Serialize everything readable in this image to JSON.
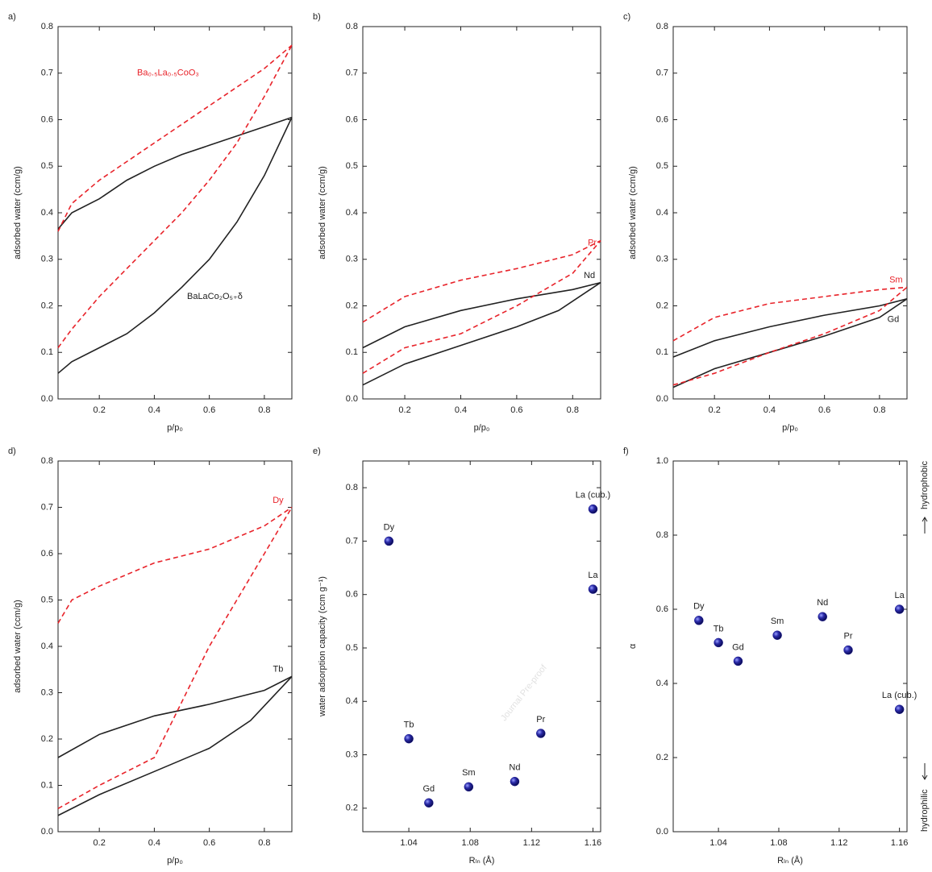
{
  "watermark": "Journal Pre-proof",
  "chart_data": [
    {
      "type": "line",
      "panel_label": "a)",
      "xlabel": "p/p₀",
      "ylabel": "adsorbed water (ccm/g)",
      "xlim": [
        0.05,
        0.9
      ],
      "ylim": [
        0,
        0.8
      ],
      "xticks": [
        0.2,
        0.4,
        0.6,
        0.8
      ],
      "yticks": [
        {
          "value": 0,
          "label": "0.0"
        },
        0.1,
        0.2,
        0.3,
        0.4,
        0.5,
        0.6,
        0.7,
        0.8
      ],
      "annotations": [
        {
          "text": "Ba₀.₅La₀.₅CoO₃",
          "color": "#e8232a"
        },
        {
          "text": "BaLaCo₂O₅₊δ",
          "color": "#222222"
        }
      ],
      "series": [
        {
          "color": "#222222",
          "dashed": false,
          "x": [
            0.05,
            0.1,
            0.2,
            0.3,
            0.4,
            0.5,
            0.6,
            0.7,
            0.8,
            0.9
          ],
          "values": [
            0.365,
            0.4,
            0.43,
            0.47,
            0.5,
            0.525,
            0.545,
            0.565,
            0.585,
            0.605
          ]
        },
        {
          "color": "#222222",
          "dashed": false,
          "x": [
            0.05,
            0.1,
            0.2,
            0.3,
            0.4,
            0.5,
            0.6,
            0.7,
            0.8,
            0.9
          ],
          "values": [
            0.055,
            0.08,
            0.11,
            0.14,
            0.185,
            0.24,
            0.3,
            0.38,
            0.48,
            0.605
          ]
        },
        {
          "color": "#e8232a",
          "dashed": true,
          "x": [
            0.05,
            0.1,
            0.2,
            0.3,
            0.4,
            0.5,
            0.6,
            0.7,
            0.8,
            0.9
          ],
          "values": [
            0.36,
            0.42,
            0.47,
            0.51,
            0.55,
            0.59,
            0.63,
            0.67,
            0.71,
            0.76
          ]
        },
        {
          "color": "#e8232a",
          "dashed": true,
          "x": [
            0.05,
            0.1,
            0.2,
            0.3,
            0.4,
            0.5,
            0.6,
            0.7,
            0.8,
            0.9
          ],
          "values": [
            0.11,
            0.15,
            0.22,
            0.28,
            0.34,
            0.4,
            0.47,
            0.55,
            0.65,
            0.76
          ]
        }
      ]
    },
    {
      "type": "line",
      "panel_label": "b)",
      "xlabel": "p/p₀",
      "ylabel": "adsorbed water (ccm/g)",
      "xlim": [
        0.05,
        0.9
      ],
      "ylim": [
        0,
        0.8
      ],
      "xticks": [
        0.2,
        0.4,
        0.6,
        0.8
      ],
      "yticks": [
        {
          "value": 0,
          "label": "0.0"
        },
        0.1,
        0.2,
        0.3,
        0.4,
        0.5,
        0.6,
        0.7,
        0.8
      ],
      "annotations": [
        {
          "text": "Pr",
          "color": "#e8232a"
        },
        {
          "text": "Nd",
          "color": "#222222"
        }
      ],
      "series": [
        {
          "color": "#222222",
          "dashed": false,
          "x": [
            0.05,
            0.2,
            0.4,
            0.6,
            0.8,
            0.9
          ],
          "values": [
            0.11,
            0.155,
            0.19,
            0.215,
            0.235,
            0.25
          ]
        },
        {
          "color": "#222222",
          "dashed": false,
          "x": [
            0.05,
            0.2,
            0.4,
            0.6,
            0.75,
            0.9
          ],
          "values": [
            0.03,
            0.075,
            0.115,
            0.155,
            0.19,
            0.25
          ]
        },
        {
          "color": "#e8232a",
          "dashed": true,
          "x": [
            0.05,
            0.2,
            0.4,
            0.6,
            0.8,
            0.9
          ],
          "values": [
            0.165,
            0.22,
            0.255,
            0.28,
            0.31,
            0.34
          ]
        },
        {
          "color": "#e8232a",
          "dashed": true,
          "x": [
            0.05,
            0.2,
            0.4,
            0.6,
            0.8,
            0.9
          ],
          "values": [
            0.055,
            0.11,
            0.14,
            0.2,
            0.27,
            0.34
          ]
        }
      ]
    },
    {
      "type": "line",
      "panel_label": "c)",
      "xlabel": "p/p₀",
      "ylabel": "adsorbed water (ccm/g)",
      "xlim": [
        0.05,
        0.9
      ],
      "ylim": [
        0,
        0.8
      ],
      "xticks": [
        0.2,
        0.4,
        0.6,
        0.8
      ],
      "yticks": [
        {
          "value": 0,
          "label": "0.0"
        },
        0.1,
        0.2,
        0.3,
        0.4,
        0.5,
        0.6,
        0.7,
        0.8
      ],
      "annotations": [
        {
          "text": "Sm",
          "color": "#e8232a"
        },
        {
          "text": "Gd",
          "color": "#222222"
        }
      ],
      "series": [
        {
          "color": "#222222",
          "dashed": false,
          "x": [
            0.05,
            0.2,
            0.4,
            0.6,
            0.8,
            0.9
          ],
          "values": [
            0.09,
            0.125,
            0.155,
            0.18,
            0.2,
            0.215
          ]
        },
        {
          "color": "#222222",
          "dashed": false,
          "x": [
            0.05,
            0.2,
            0.4,
            0.6,
            0.8,
            0.9
          ],
          "values": [
            0.025,
            0.065,
            0.1,
            0.135,
            0.175,
            0.215
          ]
        },
        {
          "color": "#e8232a",
          "dashed": true,
          "x": [
            0.05,
            0.2,
            0.4,
            0.6,
            0.8,
            0.9
          ],
          "values": [
            0.125,
            0.175,
            0.205,
            0.22,
            0.235,
            0.24
          ]
        },
        {
          "color": "#e8232a",
          "dashed": true,
          "x": [
            0.05,
            0.2,
            0.4,
            0.6,
            0.8,
            0.9
          ],
          "values": [
            0.03,
            0.055,
            0.1,
            0.14,
            0.19,
            0.24
          ]
        }
      ]
    },
    {
      "type": "line",
      "panel_label": "d)",
      "xlabel": "p/p₀",
      "ylabel": "adsorbed water (ccm/g)",
      "xlim": [
        0.05,
        0.9
      ],
      "ylim": [
        0,
        0.8
      ],
      "xticks": [
        0.2,
        0.4,
        0.6,
        0.8
      ],
      "yticks": [
        {
          "value": 0,
          "label": "0.0"
        },
        0.1,
        0.2,
        0.3,
        0.4,
        0.5,
        0.6,
        0.7,
        0.8
      ],
      "annotations": [
        {
          "text": "Dy",
          "color": "#e8232a"
        },
        {
          "text": "Tb",
          "color": "#222222"
        }
      ],
      "series": [
        {
          "color": "#222222",
          "dashed": false,
          "x": [
            0.05,
            0.2,
            0.4,
            0.6,
            0.8,
            0.9
          ],
          "values": [
            0.16,
            0.21,
            0.25,
            0.275,
            0.305,
            0.335
          ]
        },
        {
          "color": "#222222",
          "dashed": false,
          "x": [
            0.05,
            0.2,
            0.4,
            0.6,
            0.75,
            0.9
          ],
          "values": [
            0.035,
            0.08,
            0.13,
            0.18,
            0.24,
            0.335
          ]
        },
        {
          "color": "#e8232a",
          "dashed": true,
          "x": [
            0.05,
            0.1,
            0.2,
            0.4,
            0.6,
            0.8,
            0.9
          ],
          "values": [
            0.45,
            0.5,
            0.53,
            0.58,
            0.61,
            0.66,
            0.7
          ]
        },
        {
          "color": "#e8232a",
          "dashed": true,
          "x": [
            0.05,
            0.2,
            0.4,
            0.6,
            0.8,
            0.9
          ],
          "values": [
            0.05,
            0.1,
            0.16,
            0.4,
            0.6,
            0.7
          ]
        }
      ]
    },
    {
      "type": "scatter",
      "panel_label": "e)",
      "xlabel": "Rₗₙ (Å)",
      "ylabel": "water adsorption capacity (ccm g⁻¹)",
      "xlim": [
        1.01,
        1.165
      ],
      "ylim": [
        0.156,
        0.85
      ],
      "xticks": [
        1.04,
        1.08,
        1.12,
        1.16
      ],
      "yticks": [
        0.2,
        0.3,
        0.4,
        0.5,
        0.6,
        0.7,
        0.8
      ],
      "color": "#1c1c8f",
      "point_labels": [
        "Dy",
        "Tb",
        "Gd",
        "Sm",
        "Nd",
        "Pr",
        "La",
        "La (cub.)"
      ],
      "x": [
        1.027,
        1.04,
        1.053,
        1.079,
        1.109,
        1.126,
        1.16,
        1.16
      ],
      "values": [
        0.7,
        0.33,
        0.21,
        0.24,
        0.25,
        0.34,
        0.61,
        0.76
      ]
    },
    {
      "type": "scatter",
      "panel_label": "f)",
      "xlabel": "Rₗₙ (Å)",
      "ylabel": "α",
      "xlim": [
        1.01,
        1.165
      ],
      "ylim": [
        0,
        1.0
      ],
      "xticks": [
        1.04,
        1.08,
        1.12,
        1.16
      ],
      "yticks": [
        {
          "value": 0,
          "label": "0.0"
        },
        0.2,
        0.4,
        0.6,
        0.8,
        {
          "value": 1.0,
          "label": "1.0"
        }
      ],
      "color": "#1c1c8f",
      "side_labels": [
        "hydrophobic",
        "hydrophilic"
      ],
      "point_labels": [
        "Dy",
        "Tb",
        "Gd",
        "Sm",
        "Nd",
        "Pr",
        "La",
        "La (cub.)"
      ],
      "x": [
        1.027,
        1.04,
        1.053,
        1.079,
        1.109,
        1.126,
        1.16,
        1.16
      ],
      "values": [
        0.57,
        0.51,
        0.46,
        0.53,
        0.58,
        0.49,
        0.6,
        0.33
      ]
    }
  ]
}
